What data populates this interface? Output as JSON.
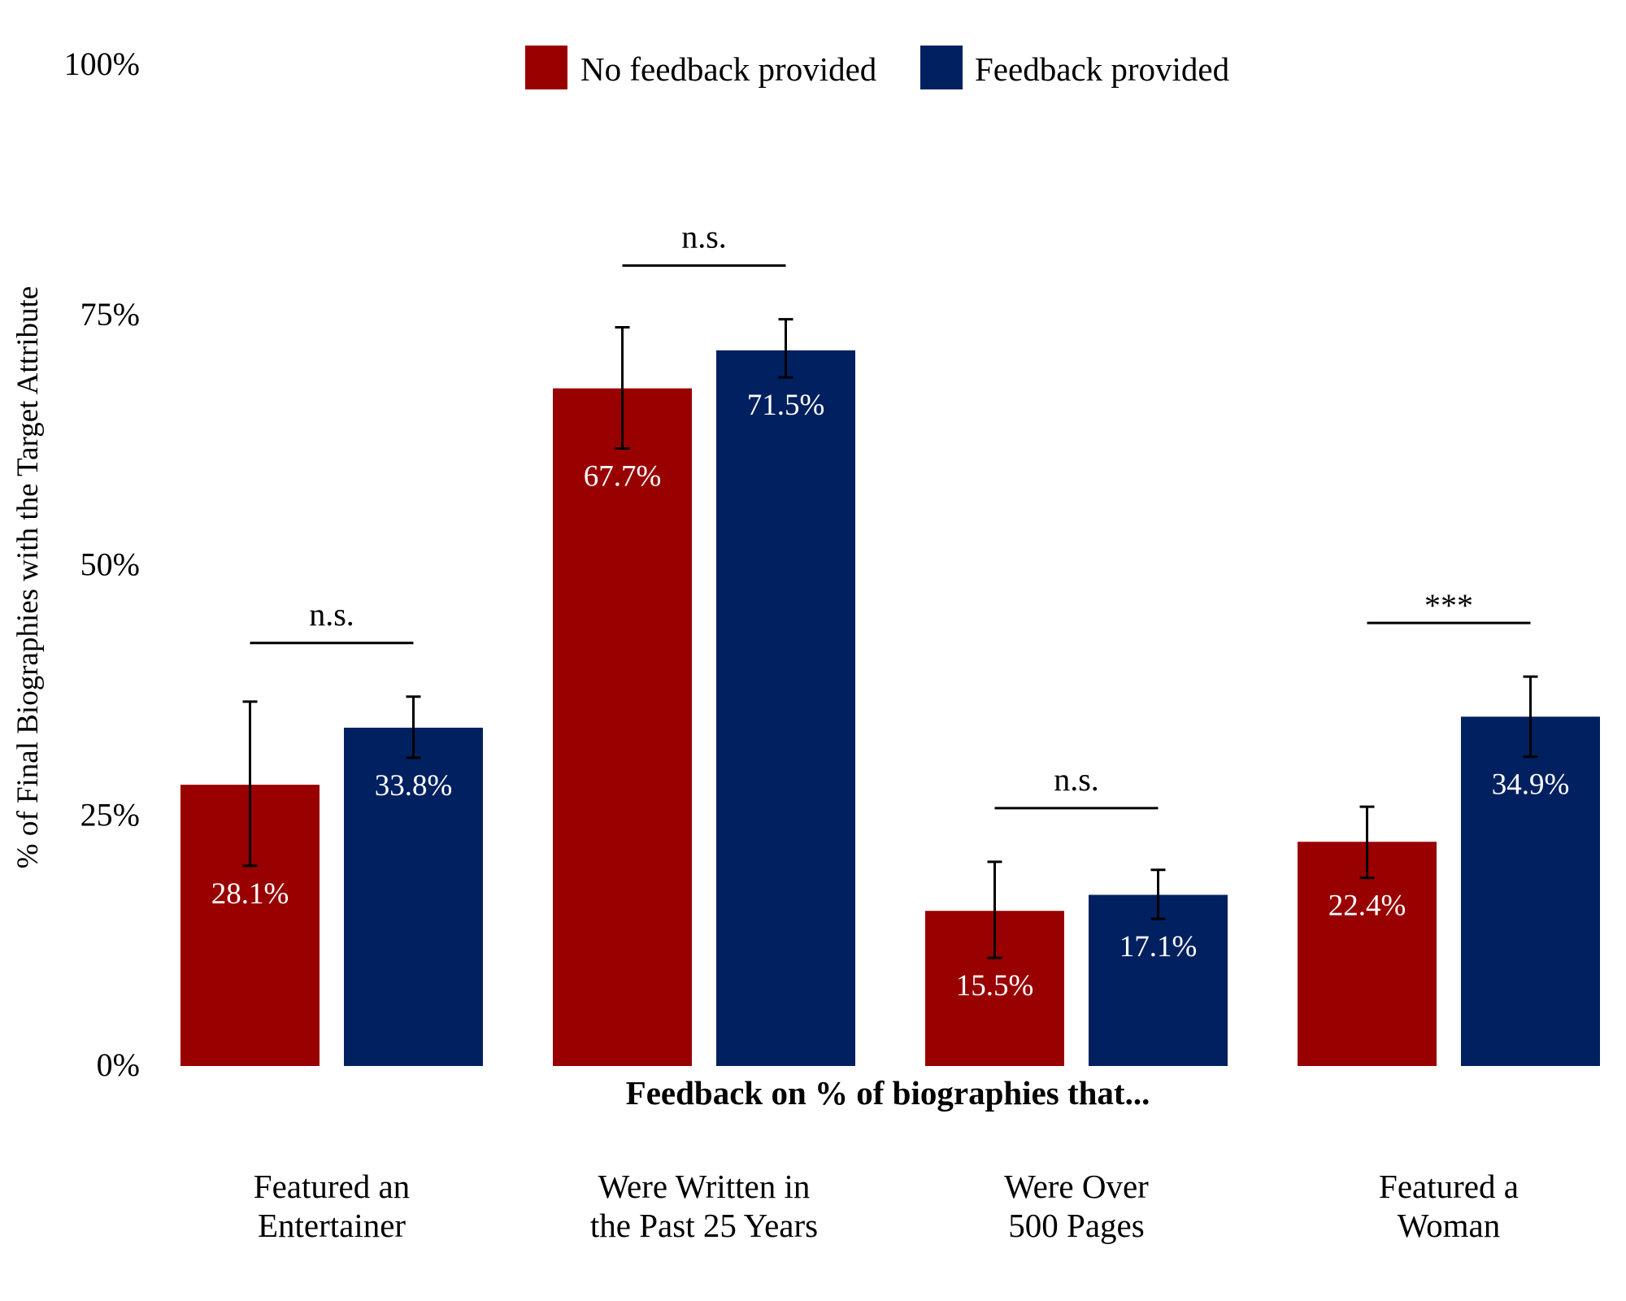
{
  "colors": {
    "no_feedback": "#990000",
    "feedback": "#002060",
    "error_bar": "#000000"
  },
  "chart_data": {
    "type": "bar",
    "title": "",
    "xlabel": "Feedback on % of biographies that...",
    "ylabel": "% of Final Biographies with the Target Attribute",
    "ylim": [
      0,
      100
    ],
    "yticks": [
      "0%",
      "25%",
      "50%",
      "75%",
      "100%"
    ],
    "grid": false,
    "legend_position": "top-center",
    "categories": [
      [
        "Featured an",
        "Entertainer"
      ],
      [
        "Were Written in",
        "the Past 25 Years"
      ],
      [
        "Were Over",
        "500 Pages"
      ],
      [
        "Featured a",
        "Woman"
      ]
    ],
    "series": [
      {
        "name": "No feedback provided",
        "values": [
          28.1,
          67.7,
          15.5,
          22.4
        ],
        "labels": [
          "28.1%",
          "67.7%",
          "15.5%",
          "22.4%"
        ],
        "error_low": [
          20.0,
          61.7,
          10.8,
          18.8
        ],
        "error_high": [
          36.4,
          73.8,
          20.4,
          25.9
        ]
      },
      {
        "name": "Feedback provided",
        "values": [
          33.8,
          71.5,
          17.1,
          34.9
        ],
        "labels": [
          "33.8%",
          "71.5%",
          "17.1%",
          "34.9%"
        ],
        "error_low": [
          30.8,
          68.8,
          14.7,
          30.9
        ],
        "error_high": [
          36.9,
          74.6,
          19.6,
          38.9
        ]
      }
    ],
    "significance": [
      "n.s.",
      "n.s.",
      "n.s.",
      "***"
    ]
  }
}
